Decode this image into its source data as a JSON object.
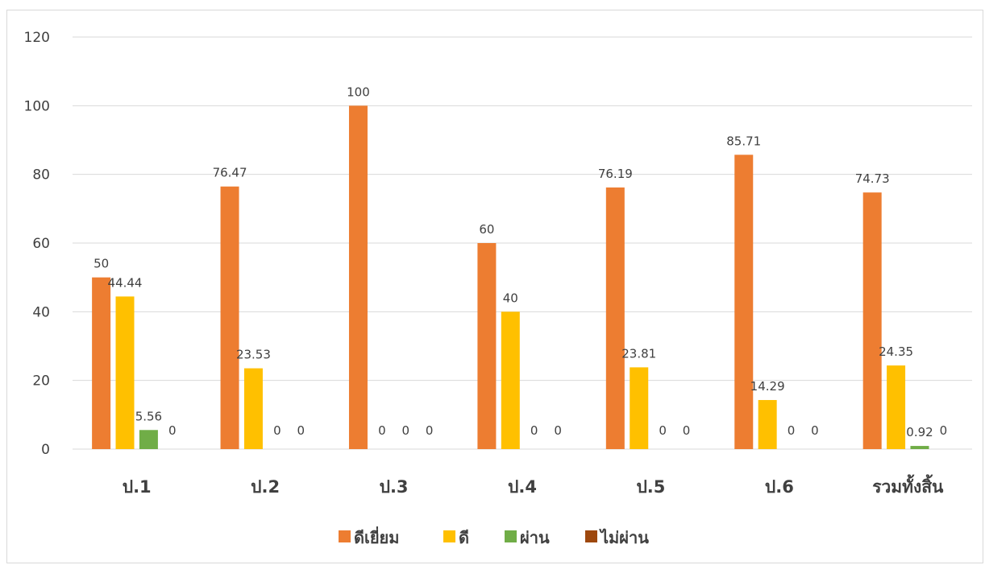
{
  "chart_data": {
    "type": "bar",
    "categories": [
      "ป.1",
      "ป.2",
      "ป.3",
      "ป.4",
      "ป.5",
      "ป.6",
      "รวมทั้งสิ้น"
    ],
    "series": [
      {
        "name": "ดีเยี่ยม",
        "color": "#ED7D31",
        "values": [
          50,
          76.47,
          100,
          60,
          76.19,
          85.71,
          74.73
        ]
      },
      {
        "name": "ดี",
        "color": "#FFC000",
        "values": [
          44.44,
          23.53,
          0,
          40,
          23.81,
          14.29,
          24.35
        ]
      },
      {
        "name": "ผ่าน",
        "color": "#70AD47",
        "values": [
          5.56,
          0,
          0,
          0,
          0,
          0,
          0.92
        ]
      },
      {
        "name": "ไม่ผ่าน",
        "color": "#9E480E",
        "values": [
          0,
          0,
          0,
          0,
          0,
          0,
          0
        ]
      }
    ],
    "ylim": [
      0,
      120
    ],
    "yticks": [
      0,
      20,
      40,
      60,
      80,
      100,
      120
    ],
    "grid": true,
    "legend_position": "bottom",
    "title": "",
    "xlabel": "",
    "ylabel": ""
  }
}
